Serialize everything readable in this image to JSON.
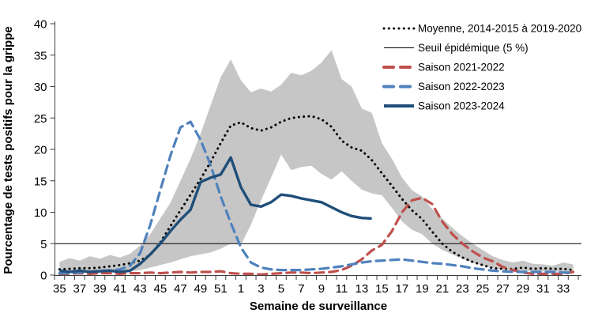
{
  "chart_data": {
    "type": "line",
    "title": "",
    "xlabel": "Semaine de surveillance",
    "ylabel": "Pourcentage de tests positifs pour la grippe",
    "ylim": [
      0,
      40
    ],
    "y_ticks": [
      0,
      5,
      10,
      15,
      20,
      25,
      30,
      35,
      40
    ],
    "weeks": [
      35,
      36,
      37,
      38,
      39,
      40,
      41,
      42,
      43,
      44,
      45,
      46,
      47,
      48,
      49,
      50,
      51,
      52,
      1,
      2,
      3,
      4,
      5,
      6,
      7,
      8,
      9,
      10,
      11,
      12,
      13,
      14,
      15,
      16,
      17,
      18,
      19,
      20,
      21,
      22,
      23,
      24,
      25,
      26,
      27,
      28,
      29,
      30,
      31,
      32,
      33,
      34
    ],
    "x_tick_labels": [
      "35",
      "37",
      "39",
      "41",
      "43",
      "45",
      "47",
      "49",
      "51",
      "1",
      "3",
      "5",
      "7",
      "9",
      "11",
      "13",
      "15",
      "17",
      "19",
      "21",
      "23",
      "25",
      "27",
      "29",
      "31",
      "33"
    ],
    "legend_position": "top-right",
    "grid": false,
    "threshold": {
      "label": "Seuil épidémique (5 %)",
      "value": 5,
      "color": "#000000"
    },
    "shaded_band": {
      "color": "#C6C6C6",
      "upper": [
        2.1,
        2.7,
        2.3,
        3.0,
        2.6,
        3.2,
        2.8,
        3.4,
        4.7,
        6.5,
        9.0,
        11.5,
        15.0,
        18.5,
        22.5,
        27.0,
        31.5,
        34.3,
        31.0,
        29.1,
        29.7,
        29.2,
        30.3,
        32.2,
        31.8,
        32.5,
        33.8,
        35.8,
        31.2,
        30.0,
        26.5,
        25.8,
        21.0,
        18.5,
        15.5,
        13.5,
        12.5,
        10.5,
        9.0,
        7.5,
        6.2,
        5.0,
        4.0,
        3.0,
        2.4,
        2.0,
        2.3,
        1.8,
        1.7,
        1.5,
        2.0,
        1.7
      ],
      "lower": [
        0.3,
        0.4,
        0.3,
        0.4,
        0.4,
        0.5,
        0.5,
        0.6,
        0.8,
        1.2,
        1.6,
        2.0,
        2.5,
        3.0,
        3.3,
        3.6,
        4.2,
        5.0,
        4.8,
        8.0,
        11.9,
        15.5,
        19.2,
        16.7,
        17.2,
        17.4,
        16.1,
        15.2,
        16.5,
        15.0,
        13.6,
        13.0,
        12.7,
        10.7,
        8.5,
        7.2,
        6.5,
        5.0,
        4.0,
        3.3,
        2.6,
        2.0,
        1.5,
        1.1,
        0.9,
        0.8,
        0.7,
        0.6,
        0.6,
        0.6,
        0.5,
        0.4
      ]
    },
    "series": [
      {
        "name": "Moyenne, 2014-2015 à 2019-2020",
        "style": "dotted",
        "color": "#000000",
        "values": [
          0.9,
          1.0,
          1.1,
          1.1,
          1.2,
          1.4,
          1.6,
          1.9,
          2.3,
          3.2,
          5.2,
          7.8,
          10.3,
          12.8,
          15.3,
          18.0,
          21.0,
          23.8,
          24.3,
          23.4,
          23.0,
          23.5,
          24.4,
          25.0,
          25.2,
          25.3,
          24.8,
          23.6,
          21.4,
          20.3,
          19.8,
          18.3,
          16.2,
          14.2,
          12.1,
          10.3,
          8.9,
          6.9,
          5.0,
          3.7,
          2.8,
          2.1,
          1.6,
          1.1,
          1.0,
          1.0,
          1.2,
          1.0,
          1.1,
          1.0,
          1.0,
          0.8
        ]
      },
      {
        "name": "Seuil épidémique (5 %)",
        "style": "threshold",
        "color": "#000000",
        "value": 5
      },
      {
        "name": "Saison 2021-2022",
        "style": "dashed",
        "color": "#C0504D",
        "values": [
          0.2,
          0.2,
          0.3,
          0.2,
          0.3,
          0.3,
          0.2,
          0.3,
          0.3,
          0.4,
          0.3,
          0.4,
          0.5,
          0.4,
          0.5,
          0.5,
          0.6,
          0.3,
          0.2,
          0.2,
          0.1,
          0.2,
          0.3,
          0.4,
          0.4,
          0.3,
          0.4,
          0.5,
          0.8,
          1.5,
          2.5,
          3.9,
          4.8,
          7.0,
          10.0,
          11.9,
          12.3,
          11.3,
          8.5,
          6.5,
          5.0,
          3.8,
          2.8,
          2.2,
          1.3,
          0.8,
          0.4,
          0.2,
          0.2,
          0.2,
          0.2,
          0.5
        ]
      },
      {
        "name": "Saison 2022-2023",
        "style": "dashed",
        "color": "#4F81BD",
        "values": [
          0.3,
          0.3,
          0.4,
          0.5,
          0.7,
          0.7,
          0.9,
          1.5,
          3.5,
          8.0,
          13.5,
          19.0,
          23.5,
          24.4,
          21.5,
          17.5,
          12.5,
          8.3,
          4.4,
          2.0,
          1.2,
          0.9,
          0.8,
          0.8,
          0.8,
          0.9,
          1.0,
          1.2,
          1.4,
          1.7,
          2.0,
          2.2,
          2.3,
          2.4,
          2.5,
          2.3,
          2.1,
          1.9,
          1.8,
          1.6,
          1.4,
          1.1,
          0.9,
          0.7,
          0.6,
          0.5,
          0.5,
          0.5,
          0.5,
          0.5,
          0.4,
          0.4
        ]
      },
      {
        "name": "Saison 2023-2024",
        "style": "solid",
        "color": "#1F4E79",
        "values": [
          0.7,
          0.5,
          0.7,
          0.5,
          0.6,
          0.7,
          0.5,
          0.7,
          1.8,
          3.3,
          5.0,
          7.0,
          8.8,
          10.4,
          14.8,
          15.5,
          16.0,
          18.7,
          14.0,
          11.2,
          10.9,
          11.6,
          12.8,
          12.6,
          12.2,
          11.9,
          11.6,
          10.8,
          10.0,
          9.4,
          9.1,
          9.0,
          null,
          null,
          null,
          null,
          null,
          null,
          null,
          null,
          null,
          null,
          null,
          null,
          null,
          null,
          null,
          null,
          null,
          null,
          null,
          null
        ]
      }
    ]
  }
}
